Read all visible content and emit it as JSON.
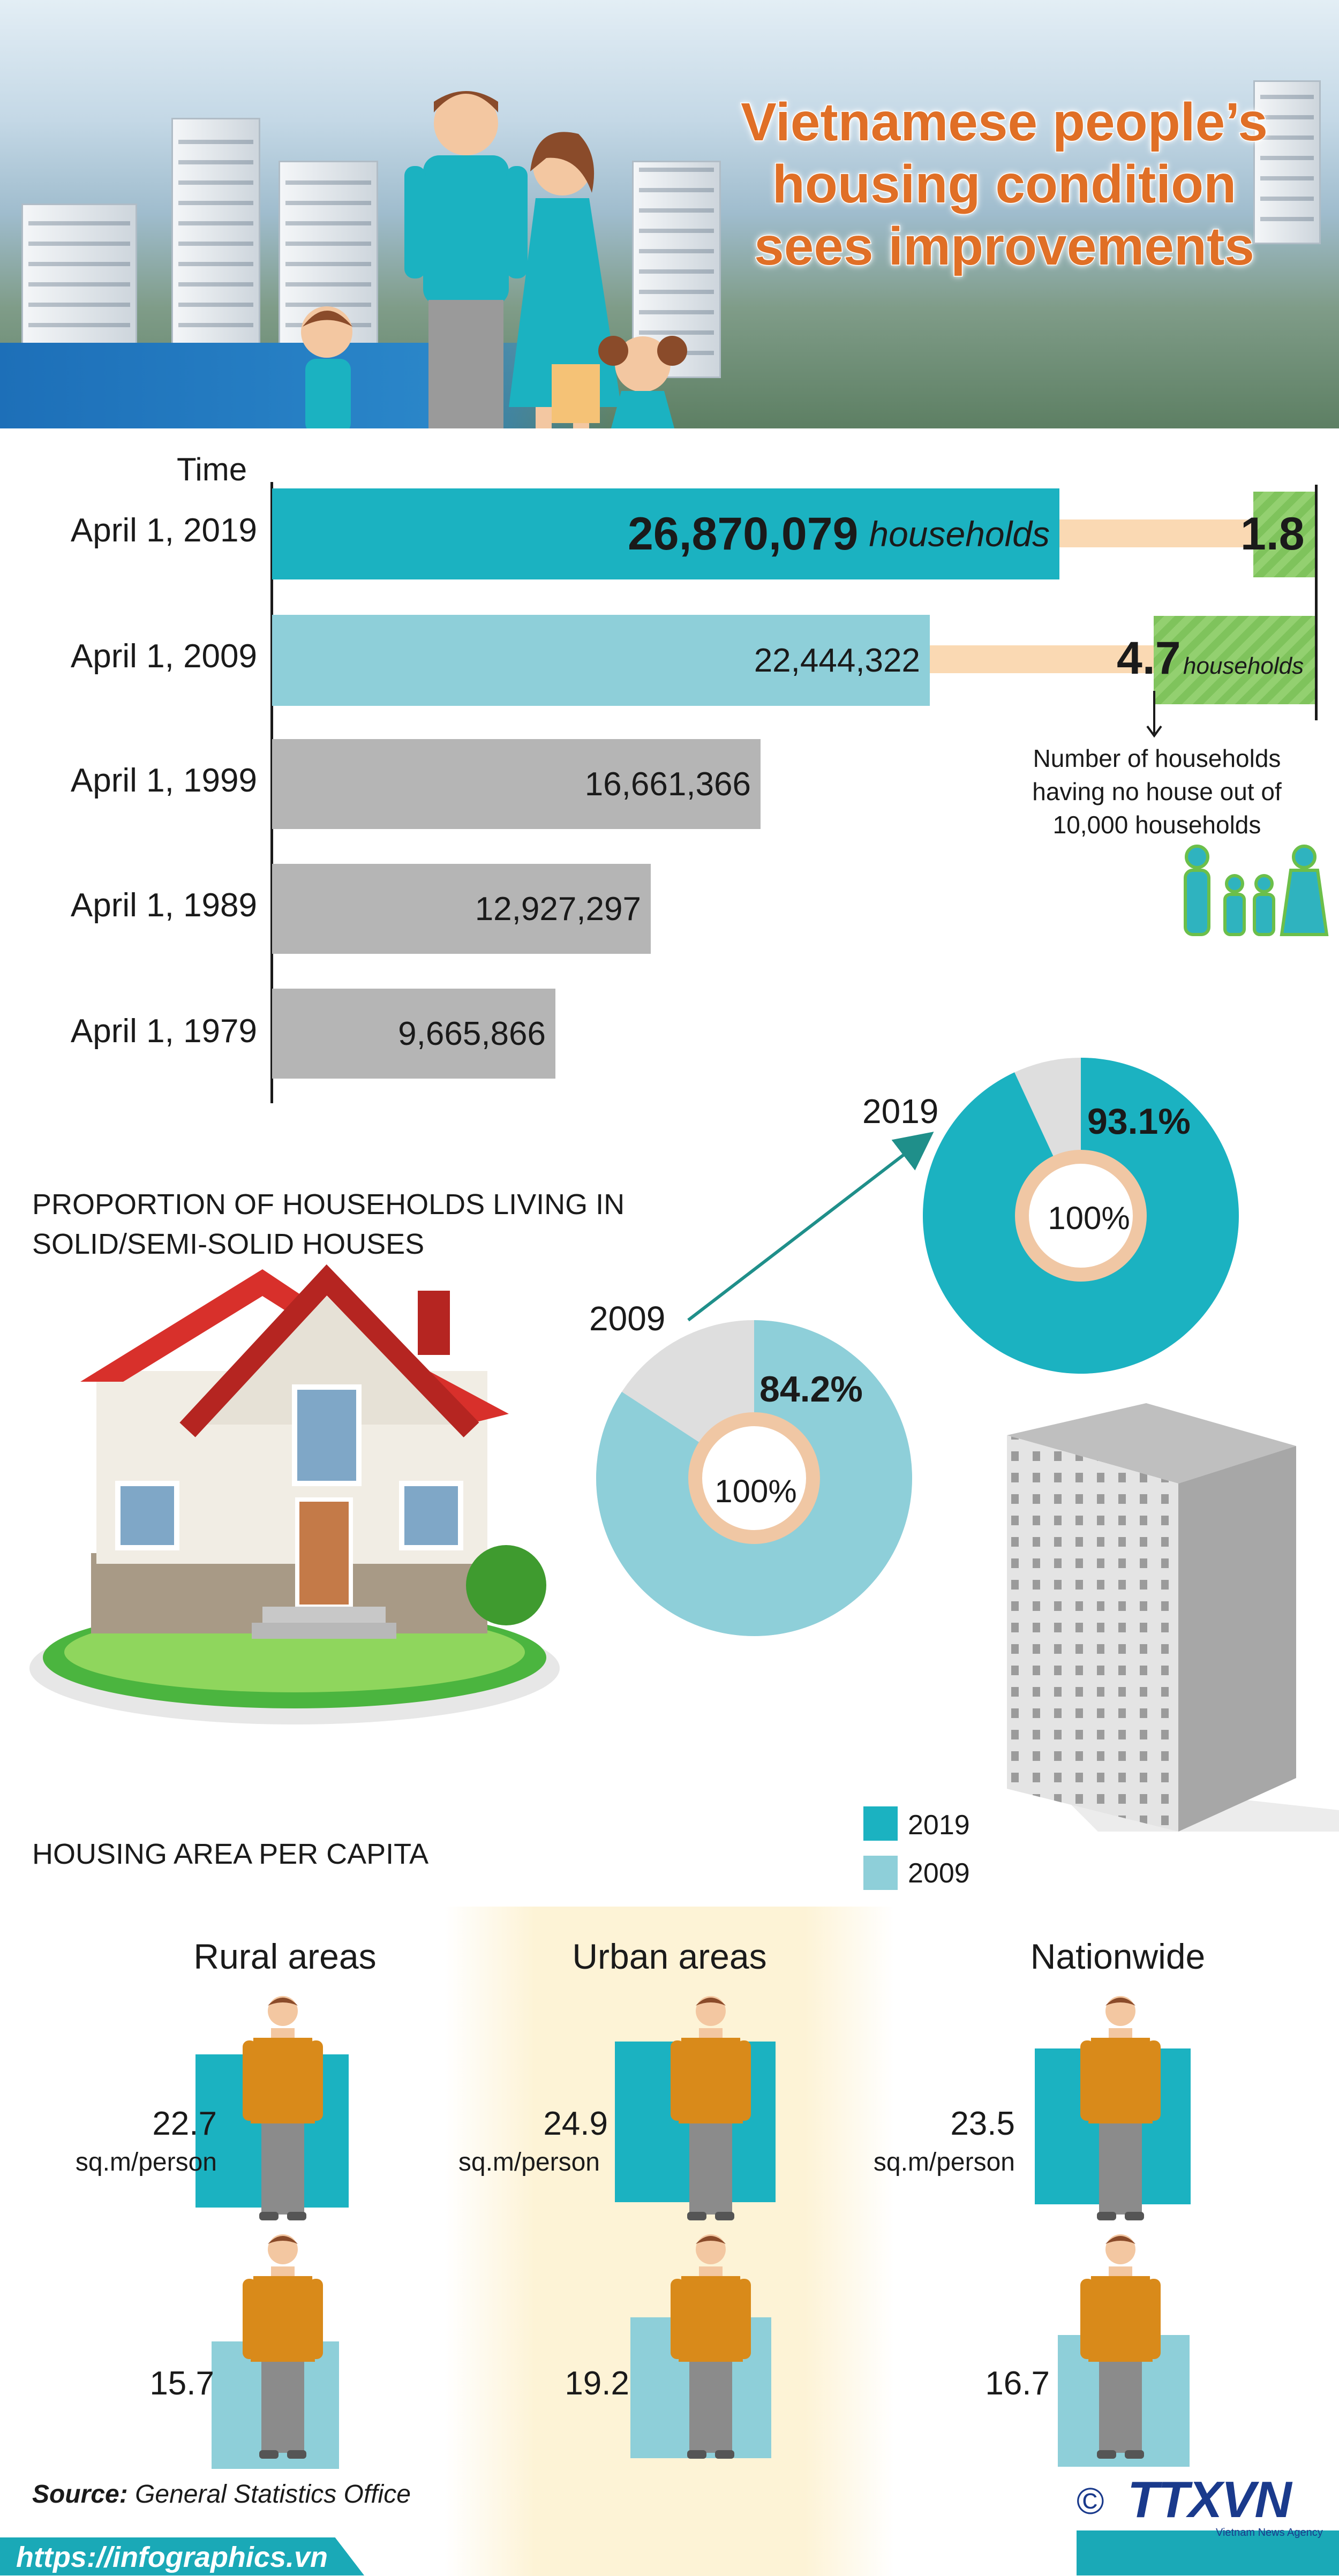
{
  "header": {
    "title_lines": [
      "Vietnamese people’s",
      "housing condition",
      "sees improvements"
    ]
  },
  "colors": {
    "teal_2019": "#1bb2c1",
    "light_2009": "#8ecfd9",
    "gray_earlier": "#b5b5b5",
    "connector_peach": "#fad9b3",
    "green_box": "#86c966",
    "title_orange": "#e06f26",
    "ring_peach": "#f0c7a4",
    "pie_gray": "#dedede",
    "urban_highlight": "#fdf5dc",
    "footer_teal": "#1aa9b7"
  },
  "timeline": {
    "axis_label": "Time",
    "rows": [
      {
        "label": "April 1, 2019",
        "value_text": "26,870,079",
        "unit": "households"
      },
      {
        "label": "April 1, 2009",
        "value_text": "22,444,322"
      },
      {
        "label": "April 1, 1999",
        "value_text": "16,661,366"
      },
      {
        "label": "April 1, 1989",
        "value_text": "12,927,297"
      },
      {
        "label": "April 1, 1979",
        "value_text": "9,665,866"
      }
    ],
    "no_house": {
      "v2019": "1.8",
      "v2009": "4.7",
      "unit": "households",
      "note_lines": [
        "Number of households",
        "having no house out of",
        "10,000 households"
      ]
    }
  },
  "proportion": {
    "title_lines": [
      "PROPORTION OF HOUSEHOLDS LIVING IN",
      "SOLID/SEMI-SOLID HOUSES"
    ],
    "pies": [
      {
        "year": "2019",
        "pct_text": "93.1%",
        "center": "100%"
      },
      {
        "year": "2009",
        "pct_text": "84.2%",
        "center": "100%"
      }
    ]
  },
  "legend": {
    "items": [
      {
        "label": "2019",
        "color": "#1bb2c1"
      },
      {
        "label": "2009",
        "color": "#8ecfd9"
      }
    ]
  },
  "per_capita": {
    "title": "HOUSING AREA PER CAPITA",
    "unit": "sq.m/person",
    "areas": [
      {
        "name": "Rural areas",
        "v2019": "22.7",
        "v2009": "15.7"
      },
      {
        "name": "Urban areas",
        "v2019": "24.9",
        "v2009": "19.2"
      },
      {
        "name": "Nationwide",
        "v2019": "23.5",
        "v2009": "16.7"
      }
    ]
  },
  "footer": {
    "source_label": "Source:",
    "source_text": "General Statistics Office",
    "link": "https://infographics.vn",
    "logo_text": "TTXVN",
    "logo_sub": "Vietnam News Agency",
    "copyright": "©"
  },
  "chart_data": [
    {
      "type": "bar",
      "categories": [
        "April 1, 2019",
        "April 1, 2009",
        "April 1, 1999",
        "April 1, 1989",
        "April 1, 1979"
      ],
      "values": [
        26870079,
        22444322,
        16661366,
        12927297,
        9665866
      ],
      "xlabel": "",
      "ylabel": "Time",
      "unit": "households"
    },
    {
      "type": "bar",
      "categories": [
        "April 1, 2019",
        "April 1, 2009"
      ],
      "values": [
        1.8,
        4.7
      ],
      "unit": "households"
    },
    {
      "type": "pie",
      "series": [
        {
          "name": "2019",
          "values": [
            93.1,
            6.9
          ]
        },
        {
          "name": "2009",
          "values": [
            84.2,
            15.8
          ]
        }
      ]
    },
    {
      "type": "bar",
      "title": "HOUSING AREA PER CAPITA",
      "categories": [
        "Rural areas",
        "Urban areas",
        "Nationwide"
      ],
      "series": [
        {
          "name": "2019",
          "values": [
            22.7,
            24.9,
            23.5
          ]
        },
        {
          "name": "2009",
          "values": [
            15.7,
            19.2,
            16.7
          ]
        }
      ],
      "unit": "sq.m/person"
    }
  ]
}
